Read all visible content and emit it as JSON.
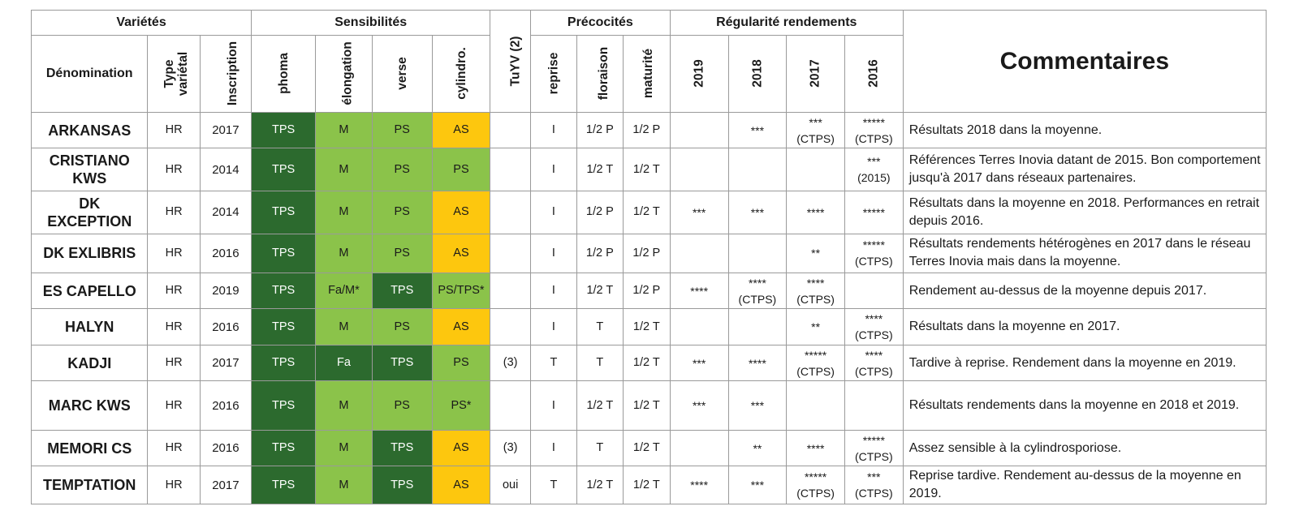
{
  "colors": {
    "dark_green": "#2c6a2e",
    "mid_green": "#8bc34a",
    "light_green": "#8bc34a",
    "yellow": "#fdc70e",
    "grid": "#9a9a9a"
  },
  "headers": {
    "group_varietes": "Variétés",
    "group_sensibilites": "Sensibilités",
    "group_precocites": "Précocités",
    "group_regularite": "Régularité rendements",
    "tuyv": "TuYV (2)",
    "commentaires": "Commentaires",
    "denomination": "Dénomination",
    "type_varietal": "Type variétal",
    "inscription": "Inscription",
    "phoma": "phoma",
    "elongation": "élongation",
    "verse": "verse",
    "cylindro": "cylindro.",
    "reprise": "reprise",
    "floraison": "floraison",
    "maturite": "maturité",
    "y2019": "2019",
    "y2018": "2018",
    "y2017": "2017",
    "y2016": "2016"
  },
  "rows": [
    {
      "name": "ARKANSAS",
      "type": "HR",
      "year": "2017",
      "phoma": "TPS",
      "elong": "M",
      "verse": "PS",
      "cyl": "AS",
      "tuyv": "",
      "reprise": "I",
      "flor": "1/2 P",
      "mat": "1/2 P",
      "r2019": "",
      "r2018": "***",
      "r2017": "***",
      "r2017b": "(CTPS)",
      "r2016": "*****",
      "r2016b": "(CTPS)",
      "comment": "Résultats 2018 dans la moyenne."
    },
    {
      "name": "CRISTIANO",
      "name2": "KWS",
      "type": "HR",
      "year": "2014",
      "phoma": "TPS",
      "elong": "M",
      "verse": "PS",
      "cyl": "PS",
      "tuyv": "",
      "reprise": "I",
      "flor": "1/2 T",
      "mat": "1/2 T",
      "r2019": "",
      "r2018": "",
      "r2017": "",
      "r2017b": "",
      "r2016": "***",
      "r2016b": "(2015)",
      "comment": "Références Terres Inovia datant de 2015. Bon comportement jusqu'à 2017 dans réseaux partenaires."
    },
    {
      "name": "DK",
      "name2": "EXCEPTION",
      "type": "HR",
      "year": "2014",
      "phoma": "TPS",
      "elong": "M",
      "verse": "PS",
      "cyl": "AS",
      "tuyv": "",
      "reprise": "I",
      "flor": "1/2 P",
      "mat": "1/2 T",
      "r2019": "***",
      "r2018": "***",
      "r2017": "****",
      "r2017b": "",
      "r2016": "*****",
      "r2016b": "",
      "comment": "Résultats dans la moyenne en 2018. Performances en retrait depuis 2016."
    },
    {
      "name": "DK EXLIBRIS",
      "type": "HR",
      "year": "2016",
      "phoma": "TPS",
      "elong": "M",
      "verse": "PS",
      "cyl": "AS",
      "tuyv": "",
      "reprise": "I",
      "flor": "1/2 P",
      "mat": "1/2 P",
      "r2019": "",
      "r2018": "",
      "r2017": "**",
      "r2017b": "",
      "r2016": "*****",
      "r2016b": "(CTPS)",
      "comment": "Résultats rendements hétérogènes en 2017 dans le réseau Terres Inovia mais dans la moyenne."
    },
    {
      "name": "ES CAPELLO",
      "type": "HR",
      "year": "2019",
      "phoma": "TPS",
      "elong": "Fa/M*",
      "verse": "TPS",
      "cyl": "PS/TPS*",
      "tuyv": "",
      "reprise": "I",
      "flor": "1/2 T",
      "mat": "1/2 P",
      "r2019": "****",
      "r2018": "****",
      "r2018b": "(CTPS)",
      "r2017": "****",
      "r2017b": "(CTPS)",
      "r2016": "",
      "r2016b": "",
      "comment": "Rendement au-dessus de la moyenne depuis 2017."
    },
    {
      "name": "HALYN",
      "type": "HR",
      "year": "2016",
      "phoma": "TPS",
      "elong": "M",
      "verse": "PS",
      "cyl": "AS",
      "tuyv": "",
      "reprise": "I",
      "flor": "T",
      "mat": "1/2 T",
      "r2019": "",
      "r2018": "",
      "r2017": "**",
      "r2017b": "",
      "r2016": "****",
      "r2016b": "(CTPS)",
      "comment": "Résultats dans la moyenne en 2017."
    },
    {
      "name": "KADJI",
      "type": "HR",
      "year": "2017",
      "phoma": "TPS",
      "elong": "Fa",
      "verse": "TPS",
      "cyl": "PS",
      "tuyv": "(3)",
      "reprise": "T",
      "flor": "T",
      "mat": "1/2 T",
      "r2019": "***",
      "r2018": "****",
      "r2017": "*****",
      "r2017b": "(CTPS)",
      "r2016": "****",
      "r2016b": "(CTPS)",
      "comment": "Tardive à reprise. Rendement dans la moyenne en 2019."
    },
    {
      "name": "MARC KWS",
      "type": "HR",
      "year": "2016",
      "phoma": "TPS",
      "elong": "M",
      "verse": "PS",
      "cyl": "PS*",
      "tuyv": "",
      "reprise": "I",
      "flor": "1/2 T",
      "mat": "1/2 T",
      "r2019": "***",
      "r2018": "***",
      "r2017": "",
      "r2017b": "",
      "r2016": "",
      "r2016b": "",
      "comment": "Résultats rendements dans la moyenne en 2018 et 2019."
    },
    {
      "name": "MEMORI CS",
      "type": "HR",
      "year": "2016",
      "phoma": "TPS",
      "elong": "M",
      "verse": "TPS",
      "cyl": "AS",
      "tuyv": "(3)",
      "reprise": "I",
      "flor": "T",
      "mat": "1/2 T",
      "r2019": "",
      "r2018": "**",
      "r2017": "****",
      "r2017b": "",
      "r2016": "*****",
      "r2016b": "(CTPS)",
      "comment": "Assez sensible à la cylindrosporiose."
    },
    {
      "name": "TEMPTATION",
      "type": "HR",
      "year": "2017",
      "phoma": "TPS",
      "elong": "M",
      "verse": "TPS",
      "cyl": "AS",
      "tuyv": "oui",
      "reprise": "T",
      "flor": "1/2 T",
      "mat": "1/2 T",
      "r2019": "****",
      "r2018": "***",
      "r2017": "*****",
      "r2017b": "(CTPS)",
      "r2016": "***",
      "r2016b": "(CTPS)",
      "comment": "Reprise tardive. Rendement au-dessus de la moyenne en 2019."
    }
  ]
}
